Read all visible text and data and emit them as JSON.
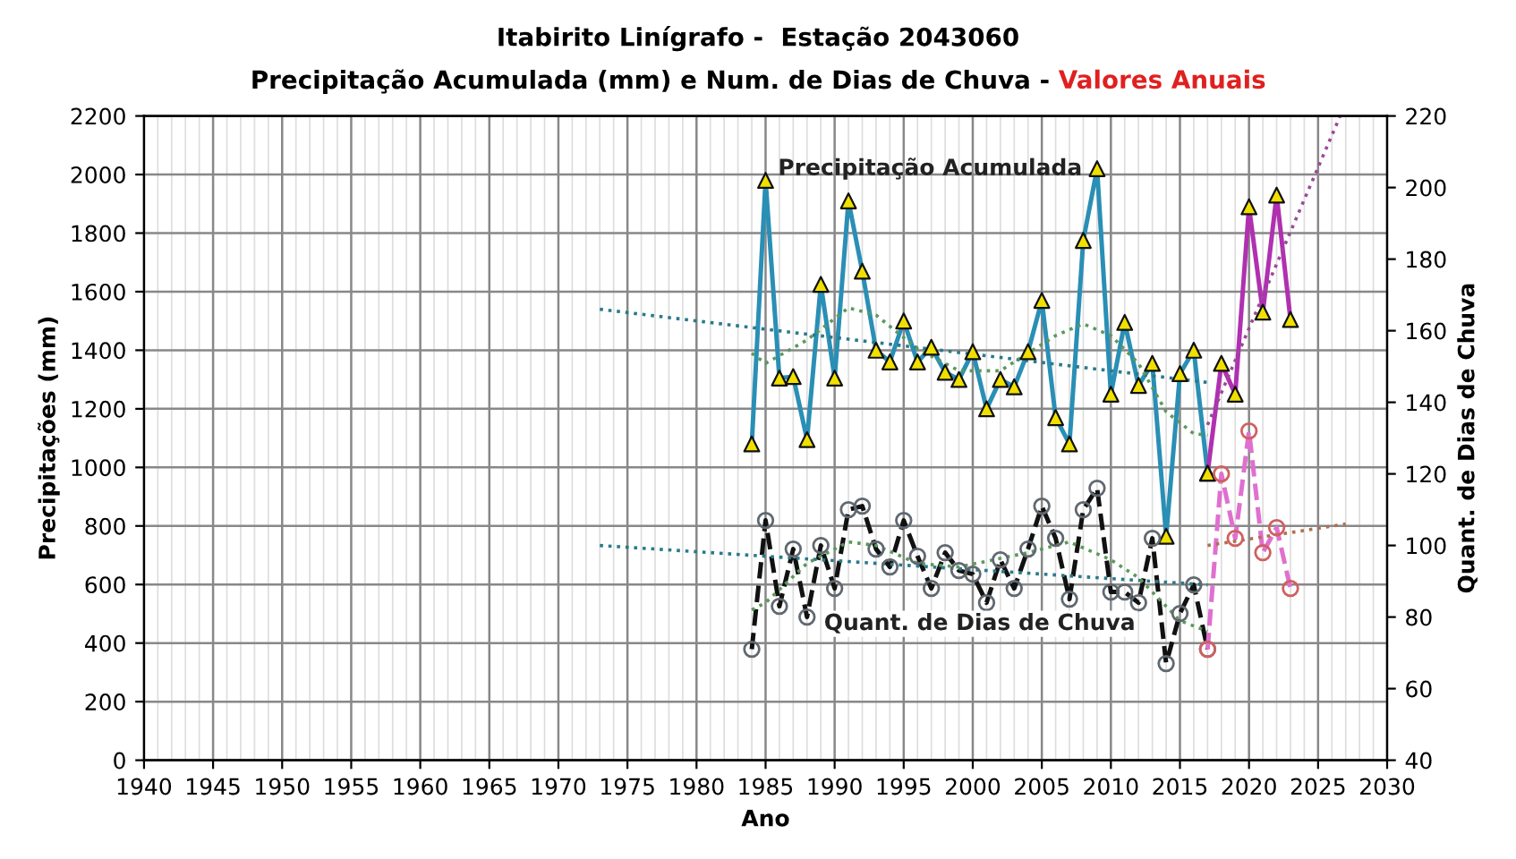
{
  "chart_data": {
    "type": "line",
    "title": "Itabirito Linígrafo -  Estação 2043060",
    "subtitle": "Precipitação Acumulada (mm) e Num. de Dias de Chuva - ",
    "annotations": [
      "Valores Anuais"
    ],
    "xlabel": "Ano",
    "ylabel": "Precipitações (mm)",
    "y2label": "Quant. de Dias de Chuva",
    "xlim": [
      1940,
      2030
    ],
    "xticks": [
      1940,
      1945,
      1950,
      1955,
      1960,
      1965,
      1970,
      1975,
      1980,
      1985,
      1990,
      1995,
      2000,
      2005,
      2010,
      2015,
      2020,
      2025,
      2030
    ],
    "ylim": [
      0,
      2200
    ],
    "yticks": [
      0,
      200,
      400,
      600,
      800,
      1000,
      1200,
      1400,
      1600,
      1800,
      2000,
      2200
    ],
    "y2lim": [
      40,
      220
    ],
    "y2ticks": [
      40,
      60,
      80,
      100,
      120,
      140,
      160,
      180,
      200,
      220
    ],
    "grid": true,
    "legend": false,
    "series": [
      {
        "name": "Precipitação Acumulada",
        "color": "#2a8fb5",
        "marker": "triangle",
        "line_style": "solid",
        "x": [
          1984,
          1985,
          1986,
          1987,
          1988,
          1989,
          1990,
          1991,
          1992,
          1993,
          1994,
          1995,
          1996,
          1997,
          1998,
          1999,
          2000,
          2001,
          2002,
          2003,
          2004,
          2005,
          2006,
          2007,
          2008,
          2009,
          2010,
          2011,
          2012,
          2013,
          2014,
          2015,
          2016,
          2017
        ],
        "values": [
          1080,
          1980,
          1305,
          1310,
          1095,
          1625,
          1305,
          1910,
          1670,
          1400,
          1360,
          1500,
          1360,
          1410,
          1325,
          1300,
          1395,
          1200,
          1300,
          1275,
          1395,
          1570,
          1170,
          1080,
          1775,
          2020,
          1250,
          1495,
          1280,
          1355,
          765,
          1320,
          1400,
          980
        ],
        "colors": [
          "#f0e000",
          "#f0e000",
          "#f0e000",
          "#f0e000",
          "#f0e000",
          "#f0e000",
          "#f0e000",
          "#f0e000",
          "#f0e000",
          "#f0e000",
          "#f0e000",
          "#f0e000",
          "#f0e000",
          "#f0e000",
          "#f0e000",
          "#f0e000",
          "#f0e000",
          "#f0e000",
          "#f0e000",
          "#f0e000",
          "#f0e000",
          "#f0e000",
          "#f0e000",
          "#f0e000",
          "#f0e000",
          "#f0e000",
          "#f0e000",
          "#f0e000",
          "#f0e000",
          "#f0e000",
          "#f0e000",
          "#f0e000",
          "#f0e000",
          "#f0e000"
        ]
      },
      {
        "color": "#b030b0",
        "marker": "triangle",
        "line_style": "solid",
        "x": [
          2017,
          2018,
          2019,
          2020,
          2021,
          2022,
          2023
        ],
        "values": [
          980,
          1355,
          1250,
          1890,
          1530,
          1930,
          1505
        ],
        "colors": [
          "#f0e000",
          "#f0e000",
          "#f0e000",
          "#f0e000",
          "#f0e000",
          "#f0e000",
          "#f0e000"
        ]
      },
      {
        "color": "#2a7a8a",
        "marker": "none",
        "line_style": "dotted",
        "x": [
          1973,
          2017
        ],
        "values": [
          1540,
          1290
        ]
      },
      {
        "color": "#5a9a5a",
        "marker": "none",
        "line_style": "dotted",
        "x": [
          1984,
          1985,
          1988,
          1991,
          1993,
          1996,
          1999,
          2002,
          2004,
          2006,
          2008,
          2010,
          2012,
          2014,
          2016,
          2017
        ],
        "values": [
          1390,
          1355,
          1435,
          1545,
          1520,
          1405,
          1330,
          1330,
          1390,
          1450,
          1490,
          1450,
          1355,
          1190,
          1115,
          1110
        ]
      },
      {
        "color": "#9a4a9a",
        "marker": "none",
        "line_style": "dotted",
        "x": [
          2017,
          2026.6
        ],
        "values": [
          1145,
          2200
        ]
      },
      {
        "name": "Quant. de Dias de Chuva",
        "axis": "y2",
        "color": "#111111",
        "marker": "circle",
        "line_style": "dashed",
        "x": [
          1984,
          1985,
          1986,
          1987,
          1988,
          1989,
          1990,
          1991,
          1992,
          1993,
          1994,
          1995,
          1996,
          1997,
          1998,
          1999,
          2000,
          2001,
          2002,
          2003,
          2004,
          2005,
          2006,
          2007,
          2008,
          2009,
          2010,
          2011,
          2012,
          2013,
          2014,
          2015,
          2016,
          2017
        ],
        "values": [
          71,
          107,
          83,
          99,
          80,
          100,
          88,
          110,
          111,
          99,
          94,
          107,
          97,
          88,
          98,
          93,
          92,
          84,
          96,
          88,
          99,
          111,
          102,
          85,
          110,
          116,
          87,
          87,
          84,
          102,
          67,
          81,
          89,
          71
        ],
        "colors": [
          "#606870",
          "#606870",
          "#606870",
          "#606870",
          "#606870",
          "#606870",
          "#606870",
          "#606870",
          "#606870",
          "#606870",
          "#606870",
          "#606870",
          "#606870",
          "#606870",
          "#606870",
          "#606870",
          "#606870",
          "#606870",
          "#606870",
          "#606870",
          "#606870",
          "#606870",
          "#606870",
          "#606870",
          "#606870",
          "#606870",
          "#606870",
          "#606870",
          "#606870",
          "#606870",
          "#606870",
          "#606870",
          "#606870",
          "#606870"
        ]
      },
      {
        "axis": "y2",
        "color": "#e070d0",
        "marker": "circle",
        "line_style": "dashed",
        "x": [
          2017,
          2018,
          2019,
          2020,
          2021,
          2022,
          2023
        ],
        "values": [
          71,
          120,
          102,
          132,
          98,
          105,
          88
        ],
        "colors": [
          "#d06060",
          "#d06060",
          "#d06060",
          "#d06060",
          "#d06060",
          "#d06060",
          "#d06060"
        ]
      },
      {
        "axis": "y2",
        "color": "#2a7a8a",
        "marker": "none",
        "line_style": "dotted",
        "x": [
          1973,
          2017
        ],
        "values": [
          100,
          89
        ]
      },
      {
        "axis": "y2",
        "color": "#5a9a5a",
        "marker": "none",
        "line_style": "dotted",
        "x": [
          1984,
          1985,
          1988,
          1991,
          1993,
          1996,
          1999,
          2004,
          2007,
          2010,
          2012,
          2015,
          2017
        ],
        "values": [
          82,
          84,
          95,
          101,
          100,
          95,
          94,
          98,
          101,
          96,
          91,
          79,
          76
        ]
      },
      {
        "axis": "y2",
        "color": "#b07050",
        "marker": "none",
        "line_style": "dotted",
        "x": [
          2017,
          2027
        ],
        "values": [
          100,
          106
        ]
      }
    ]
  }
}
